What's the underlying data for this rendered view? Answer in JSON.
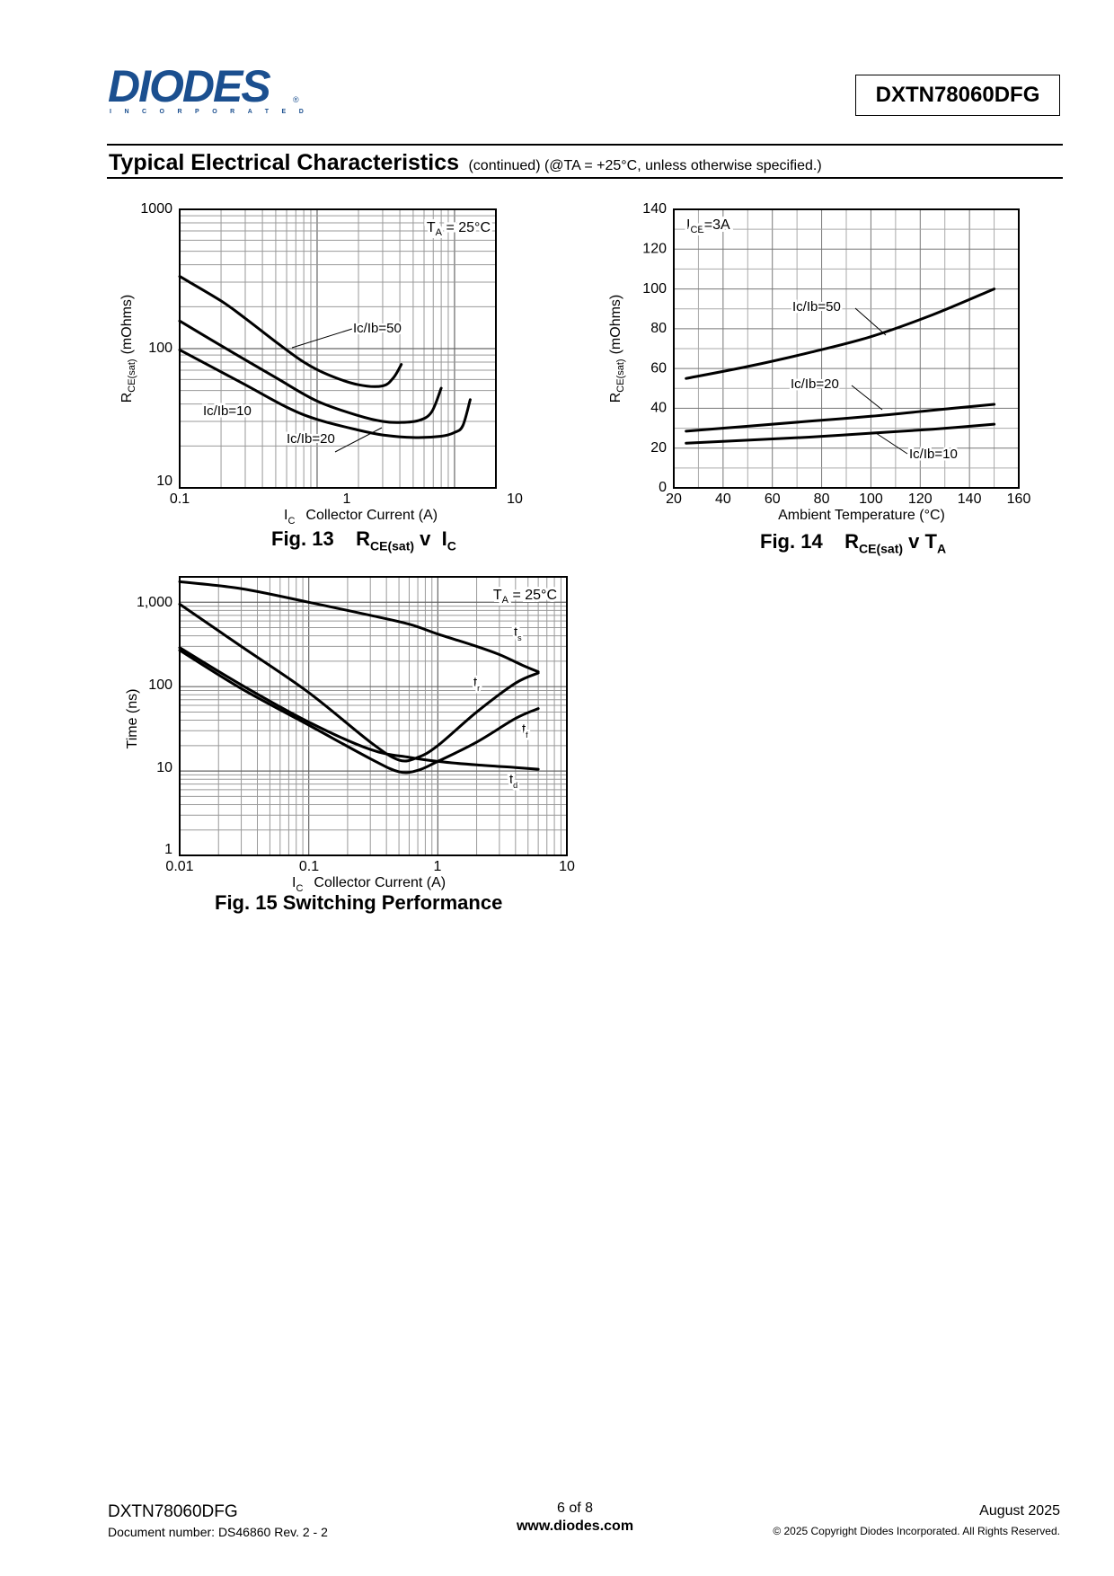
{
  "header": {
    "logo_text": "DIODES",
    "logo_subtext": "INCORPORATED",
    "logo_reg": "®",
    "part_number": "DXTN78060DFG"
  },
  "section": {
    "title": "Typical Electrical Characteristics",
    "subtitle": "(continued)  (@TA = +25°C, unless otherwise specified.)"
  },
  "figures": {
    "fig13": {
      "caption_prefix": "Fig. 13",
      "caption_r": "R",
      "caption_r_sub": "CE(sat)",
      "caption_v": "v",
      "caption_i": "I",
      "caption_i_sub": "C"
    },
    "fig14": {
      "caption_prefix": "Fig. 14",
      "caption_r": "R",
      "caption_r_sub": "CE(sat)",
      "caption_v": "v",
      "caption_t": "T",
      "caption_t_sub": "A"
    },
    "fig15": {
      "caption": "Fig. 15  Switching Performance"
    }
  },
  "chart_data": [
    {
      "type": "line",
      "id": "fig13",
      "x_scale": "log",
      "y_scale": "log",
      "xlim": [
        0.1,
        20
      ],
      "ylim": [
        10,
        1000
      ],
      "x_ticks": [
        "0.1",
        "1",
        "10"
      ],
      "y_ticks": [
        "10",
        "100",
        "1000"
      ],
      "xlabel_prefix": "I",
      "xlabel_prefix_sub": "C",
      "xlabel": "Collector Current (A)",
      "ylabel_prefix": "R",
      "ylabel_prefix_sub": "CE(sat)",
      "ylabel": "(mOhms)",
      "condition_text": "T",
      "condition_sub": "A",
      "condition_value": " = 25°C",
      "grid": true,
      "series": [
        {
          "name": "Ic/Ib=50",
          "x": [
            0.1,
            0.2,
            0.3,
            0.5,
            0.8,
            1.2,
            2,
            3,
            3.6,
            4.1
          ],
          "y": [
            330,
            220,
            165,
            112,
            80,
            65,
            55,
            54,
            62,
            77
          ]
        },
        {
          "name": "Ic/Ib=20",
          "x": [
            0.1,
            0.2,
            0.5,
            1,
            2,
            3,
            4,
            5.5,
            6.8,
            8
          ],
          "y": [
            158,
            105,
            62,
            42,
            33,
            30,
            29.5,
            30.5,
            35,
            52
          ]
        },
        {
          "name": "Ic/Ib=10",
          "x": [
            0.1,
            0.3,
            0.6,
            1,
            2,
            3,
            5,
            8,
            10,
            11.5,
            13
          ],
          "y": [
            98,
            55,
            38,
            31,
            26,
            24,
            23,
            23.5,
            25,
            28,
            43
          ]
        }
      ],
      "labels": [
        "Ic/Ib=50",
        "Ic/Ib=20",
        "Ic/Ib=10"
      ]
    },
    {
      "type": "line",
      "id": "fig14",
      "xlim": [
        20,
        160
      ],
      "ylim": [
        0,
        140
      ],
      "x_ticks": [
        "20",
        "40",
        "60",
        "80",
        "100",
        "120",
        "140",
        "160"
      ],
      "y_ticks": [
        "0",
        "20",
        "40",
        "60",
        "80",
        "100",
        "120",
        "140"
      ],
      "xlabel": "Ambient Temperature (°C)",
      "ylabel_prefix": "R",
      "ylabel_prefix_sub": "CE(sat)",
      "ylabel": "(mOhms)",
      "condition_text": "I",
      "condition_sub": "CE",
      "condition_value": "=3A",
      "grid": true,
      "series": [
        {
          "name": "Ic/Ib=50",
          "x": [
            25,
            50,
            75,
            100,
            125,
            150
          ],
          "y": [
            55,
            61,
            68,
            76,
            87,
            100
          ]
        },
        {
          "name": "Ic/Ib=20",
          "x": [
            25,
            50,
            75,
            100,
            125,
            150
          ],
          "y": [
            28.5,
            31,
            33.5,
            36,
            39,
            42
          ]
        },
        {
          "name": "Ic/Ib=10",
          "x": [
            25,
            50,
            75,
            100,
            125,
            150
          ],
          "y": [
            22.5,
            24,
            25.5,
            27.5,
            29.5,
            32
          ]
        }
      ],
      "labels": [
        "Ic/Ib=50",
        "Ic/Ib=20",
        "Ic/Ib=10"
      ]
    },
    {
      "type": "line",
      "id": "fig15",
      "x_scale": "log",
      "y_scale": "log",
      "xlim": [
        0.01,
        10
      ],
      "ylim": [
        1,
        2000
      ],
      "x_ticks": [
        "0.01",
        "0.1",
        "1",
        "10"
      ],
      "y_ticks": [
        "1",
        "10",
        "100",
        "1,000"
      ],
      "xlabel_prefix": "I",
      "xlabel_prefix_sub": "C",
      "xlabel": "Collector Current (A)",
      "ylabel": "Time (ns)",
      "condition_text": "T",
      "condition_sub": "A",
      "condition_value": " = 25°C",
      "grid": true,
      "series": [
        {
          "name": "ts",
          "x": [
            0.01,
            0.03,
            0.1,
            0.3,
            0.6,
            1,
            2,
            3,
            4.5,
            6
          ],
          "y": [
            1750,
            1450,
            1000,
            700,
            550,
            420,
            300,
            240,
            180,
            150
          ]
        },
        {
          "name": "tr",
          "x": [
            0.01,
            0.03,
            0.1,
            0.3,
            0.5,
            0.7,
            1,
            2,
            4,
            6
          ],
          "y": [
            950,
            300,
            85,
            22,
            13.5,
            14.5,
            20,
            50,
            110,
            145
          ]
        },
        {
          "name": "tf",
          "x": [
            0.01,
            0.03,
            0.1,
            0.3,
            0.5,
            0.7,
            1,
            2,
            4,
            6
          ],
          "y": [
            270,
            95,
            35,
            14,
            9.8,
            10.2,
            13,
            22,
            42,
            55
          ]
        },
        {
          "name": "td",
          "x": [
            0.01,
            0.03,
            0.1,
            0.3,
            0.6,
            1,
            2,
            4,
            6
          ],
          "y": [
            290,
            105,
            38,
            18,
            14.5,
            13,
            11.8,
            11,
            10.5
          ]
        }
      ],
      "labels": [
        "t",
        "t",
        "t",
        "t"
      ],
      "label_subs": [
        "s",
        "r",
        "f",
        "d"
      ]
    }
  ],
  "footer": {
    "part_number": "DXTN78060DFG",
    "doc_number": "Document number: DS46860 Rev. 2 - 2",
    "page": "6 of 8",
    "website": "www.diodes.com",
    "date": "August 2025",
    "copyright": "© 2025 Copyright Diodes Incorporated. All Rights Reserved."
  }
}
